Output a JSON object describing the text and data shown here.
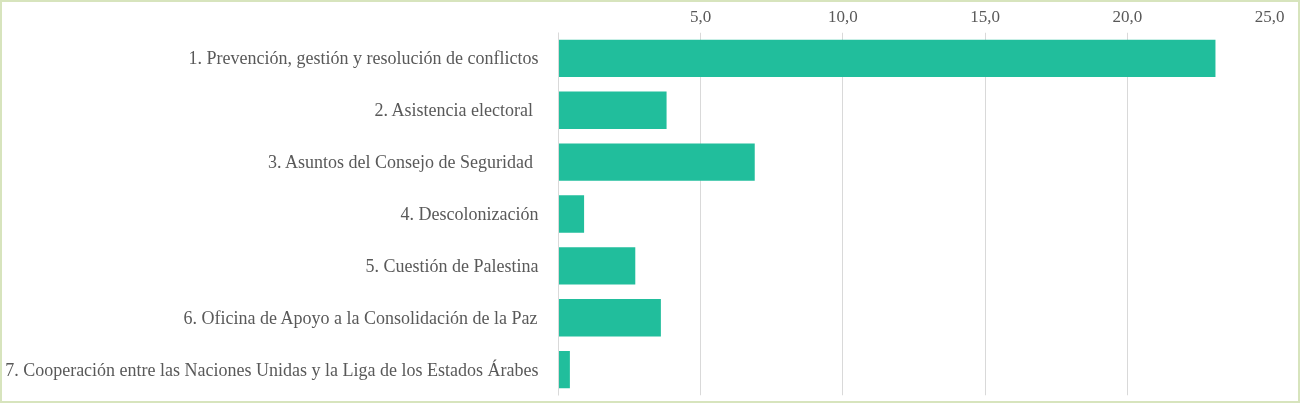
{
  "chart_data": {
    "type": "bar",
    "orientation": "horizontal",
    "categories": [
      "1. Prevención, gestión y resolución de conflictos",
      "2. Asistencia electoral ",
      "3. Asuntos del Consejo de Seguridad ",
      "4. Descolonización",
      "5. Cuestión de Palestina",
      "6. Oficina de Apoyo a la Consolidación de la Paz",
      "7. Cooperación entre las Naciones Unidas y la Liga de los Estados Árabes"
    ],
    "values": [
      23.1,
      3.8,
      6.9,
      0.9,
      2.7,
      3.6,
      0.4
    ],
    "color": "#21be9c",
    "xlim": [
      0,
      25
    ],
    "xticks": [
      {
        "value": 5,
        "label": "5,0"
      },
      {
        "value": 10,
        "label": "10,0"
      },
      {
        "value": 15,
        "label": "15,0"
      },
      {
        "value": 20,
        "label": "20,0"
      },
      {
        "value": 25,
        "label": "25,0"
      }
    ],
    "grid": "x"
  }
}
